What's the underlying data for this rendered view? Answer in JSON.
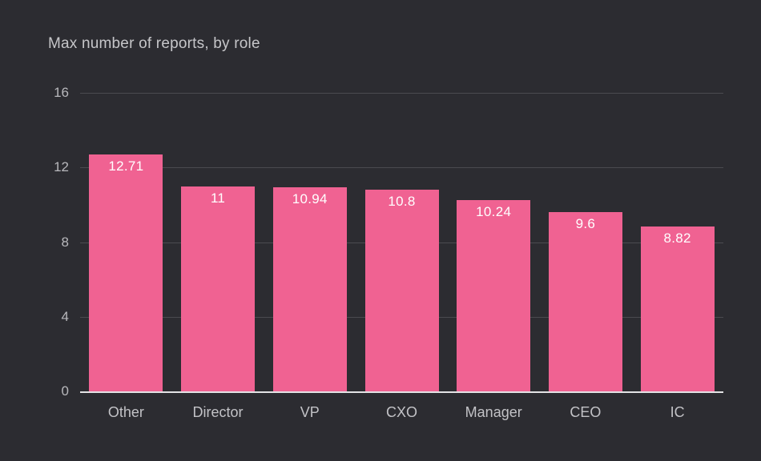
{
  "chart_data": {
    "type": "bar",
    "title": "Max number of reports, by role",
    "categories": [
      "Other",
      "Director",
      "VP",
      "CXO",
      "Manager",
      "CEO",
      "IC"
    ],
    "values": [
      12.71,
      11,
      10.94,
      10.8,
      10.24,
      9.6,
      8.82
    ],
    "value_labels": [
      "12.71",
      "11",
      "10.94",
      "10.8",
      "10.24",
      "9.6",
      "8.82"
    ],
    "xlabel": "",
    "ylabel": "",
    "ylim": [
      0,
      16
    ],
    "yticks": [
      0,
      4,
      8,
      12,
      16
    ],
    "grid": true,
    "legend": "none",
    "colors": {
      "background": "#2c2c31",
      "bar": "#f06292",
      "gridline": "#4b4b50",
      "axis_baseline": "#e3e3e5",
      "title_text": "#c6c6c9",
      "y_tick_text": "#b8b8bc",
      "x_label_text": "#c2c2c6",
      "value_text": "#ffffff"
    }
  }
}
